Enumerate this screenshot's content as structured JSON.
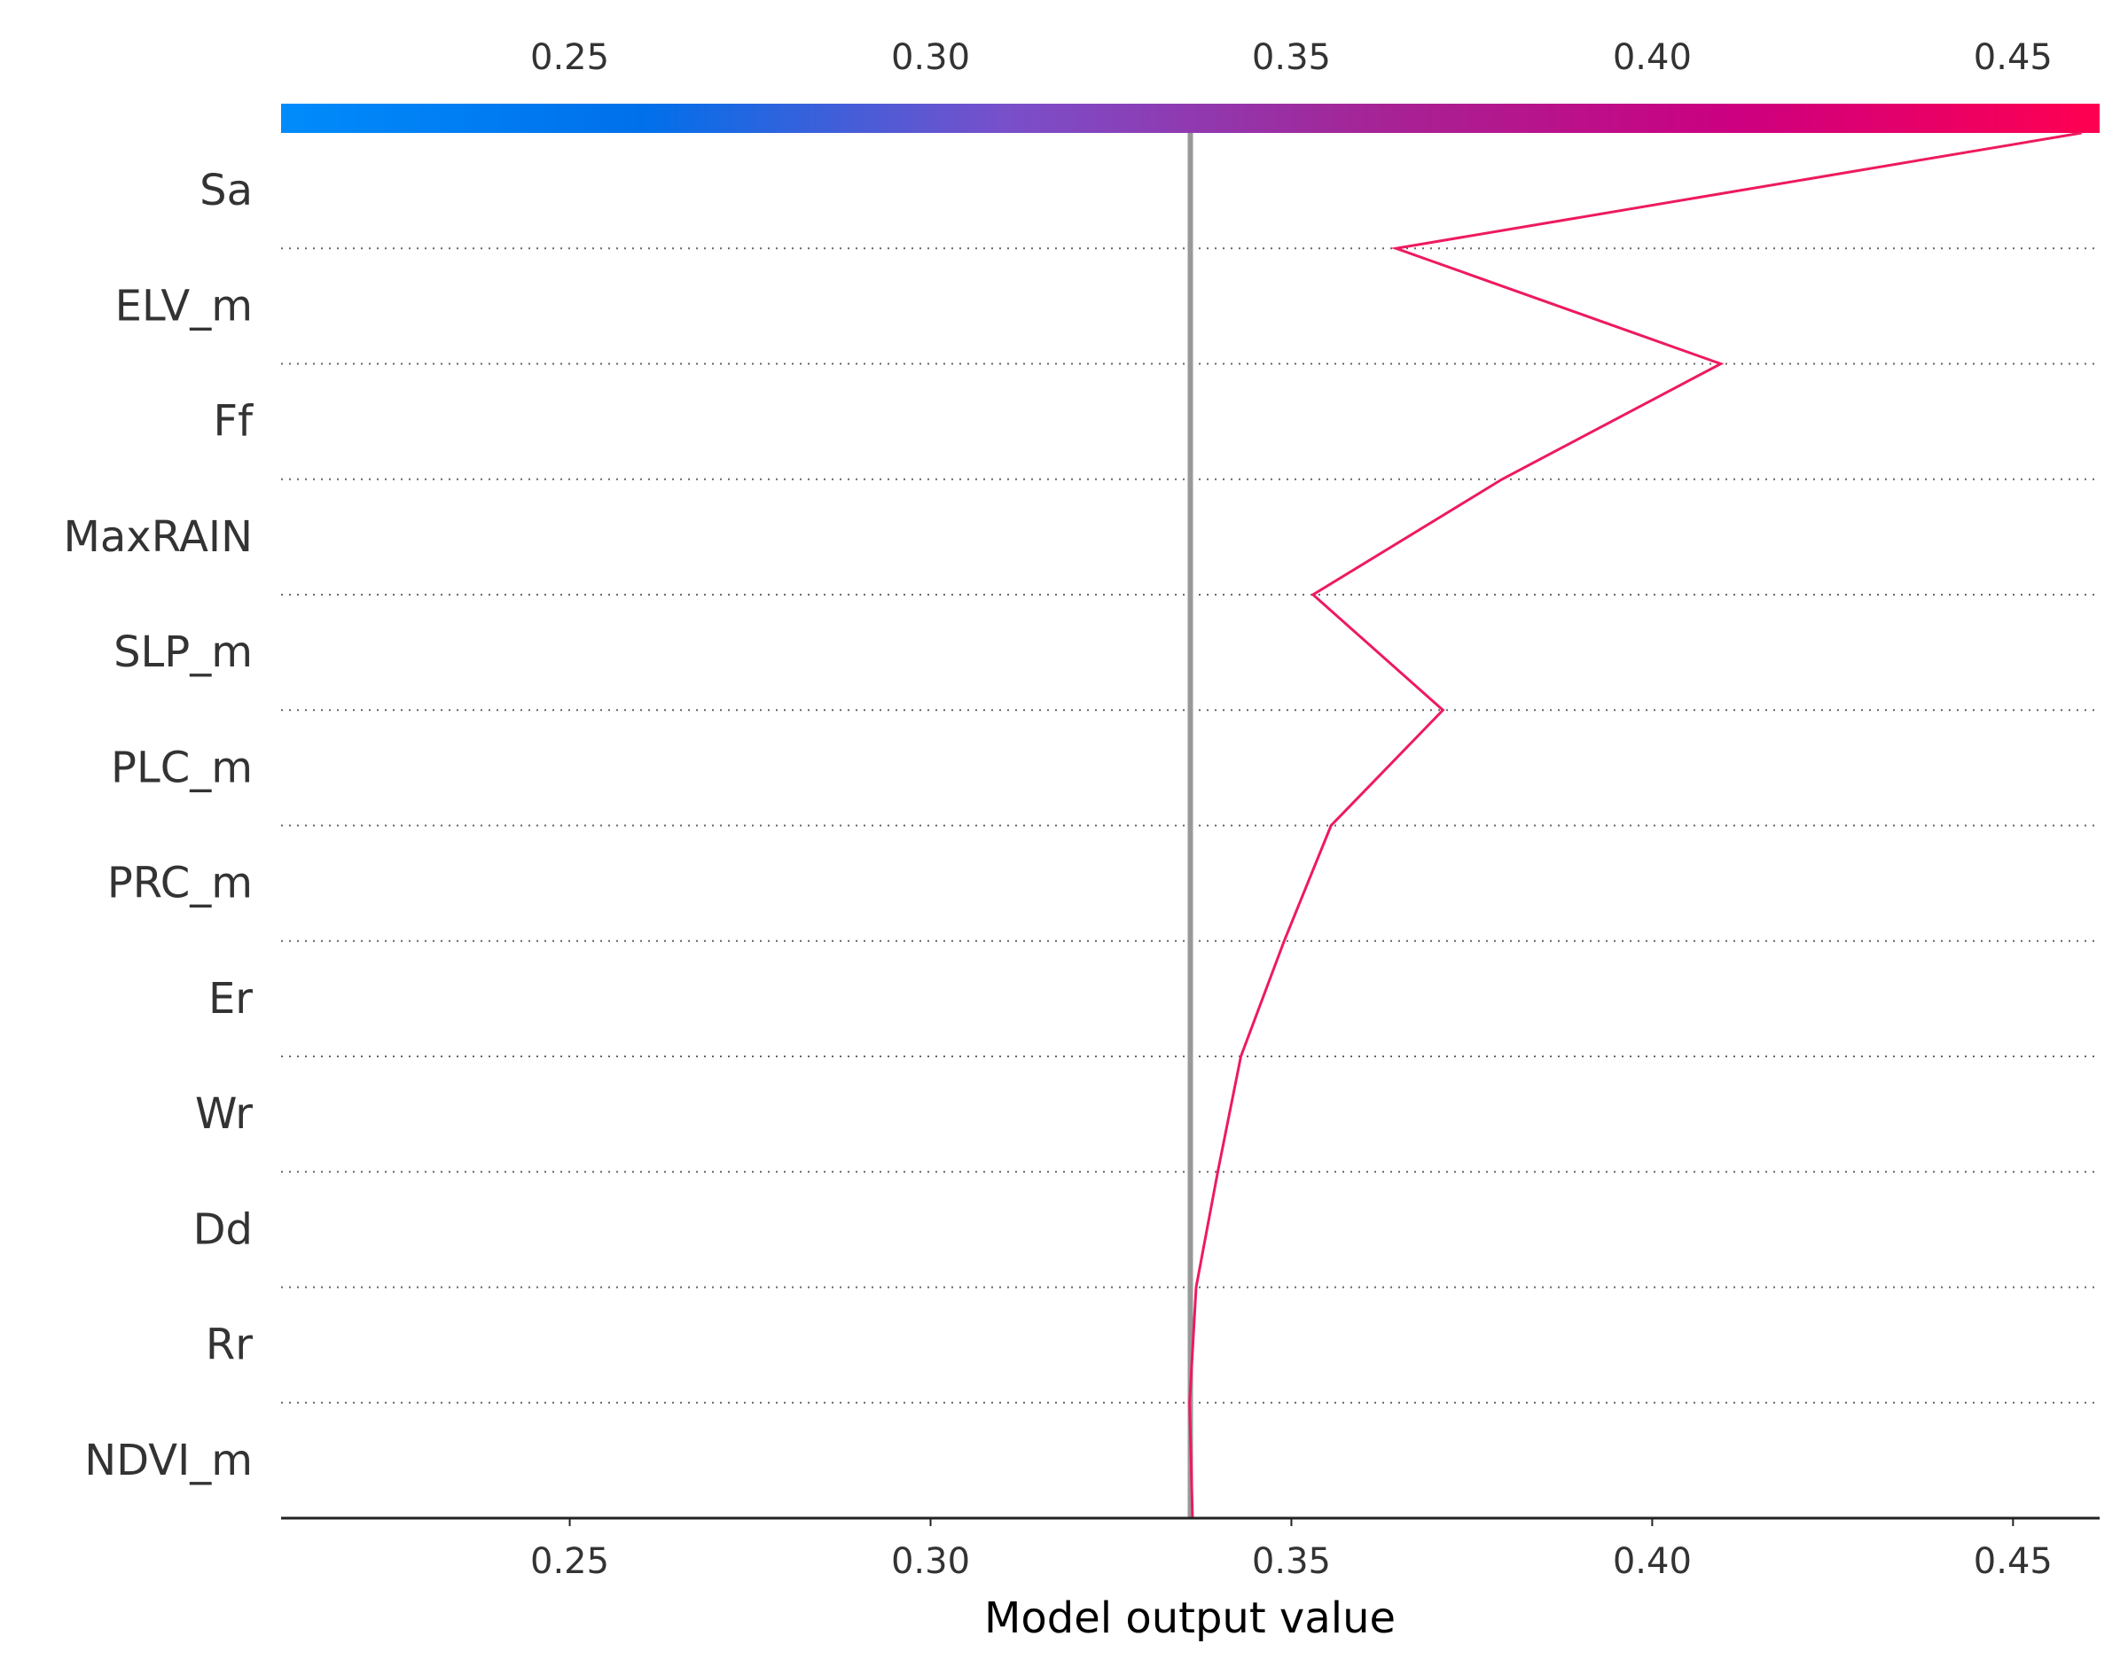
{
  "chart_data": {
    "type": "line",
    "subtype": "shap-decision-plot",
    "title": "",
    "xlabel": "Model output value",
    "ylabel": "",
    "xlim": [
      0.21,
      0.462
    ],
    "xticks": [
      {
        "value": 0.25,
        "label": "0.25"
      },
      {
        "value": 0.3,
        "label": "0.30"
      },
      {
        "value": 0.35,
        "label": "0.35"
      },
      {
        "value": 0.4,
        "label": "0.40"
      },
      {
        "value": 0.45,
        "label": "0.45"
      }
    ],
    "features": [
      "Sa",
      "ELV_m",
      "Ff",
      "MaxRAIN",
      "SLP_m",
      "PLC_m",
      "PRC_m",
      "Er",
      "Wr",
      "Dd",
      "Rr",
      "NDVI_m"
    ],
    "base_value": 0.336,
    "path": [
      {
        "boundary": "top",
        "value": 0.4595
      },
      {
        "boundary": "Sa|ELV_m",
        "value": 0.3645
      },
      {
        "boundary": "ELV_m|Ff",
        "value": 0.4095
      },
      {
        "boundary": "Ff|MaxRAIN",
        "value": 0.3792
      },
      {
        "boundary": "MaxRAIN|SLP_m",
        "value": 0.353
      },
      {
        "boundary": "SLP_m|PLC_m",
        "value": 0.371
      },
      {
        "boundary": "PLC_m|PRC_m",
        "value": 0.3555
      },
      {
        "boundary": "PRC_m|Er",
        "value": 0.349
      },
      {
        "boundary": "Er|Wr",
        "value": 0.343
      },
      {
        "boundary": "Wr|Dd",
        "value": 0.3398
      },
      {
        "boundary": "Dd|Rr",
        "value": 0.3368
      },
      {
        "boundary": "Rr|NDVI_m",
        "value": 0.3359
      },
      {
        "boundary": "bottom",
        "value": 0.3363
      }
    ],
    "grid": "dotted horizontal separators",
    "colorbar": {
      "position": "top",
      "colormap": [
        "#008bfb",
        "#0070ea",
        "#7a4fca",
        "#a52496",
        "#cc0080",
        "#ff0051"
      ]
    },
    "colors": {
      "line": "#ee1a5e",
      "base_line": "#999999",
      "grid": "#666666",
      "axis": "#222222",
      "text": "#333333"
    }
  }
}
